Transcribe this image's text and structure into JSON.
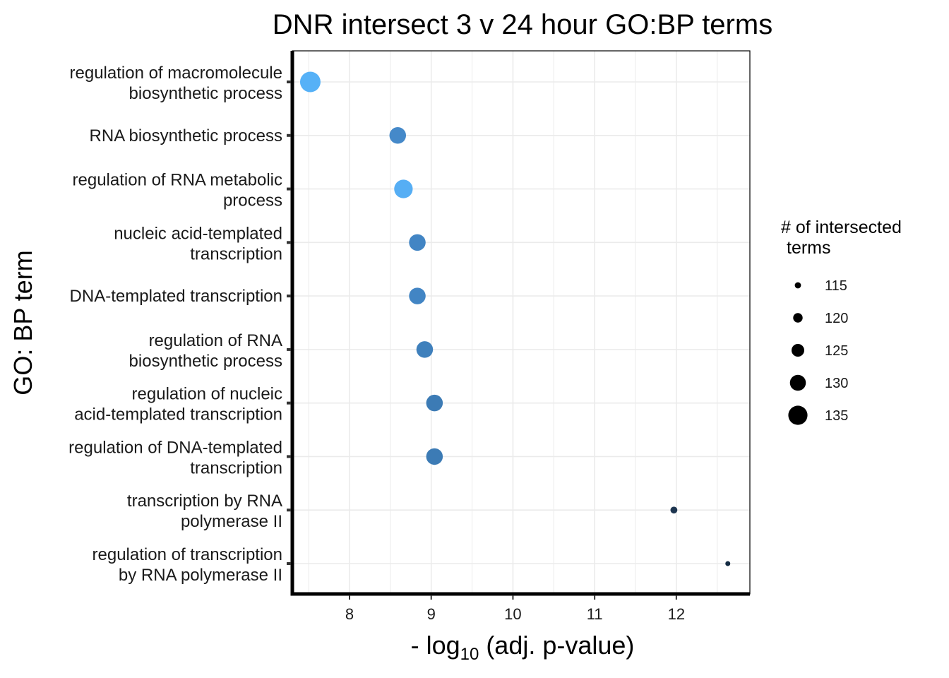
{
  "chart_data": {
    "type": "scatter",
    "title": "DNR intersect 3 v 24 hour GO:BP terms",
    "xlabel": {
      "prefix": "- log",
      "subscript": "10",
      "suffix": " (adj. p-value)"
    },
    "ylabel": "GO: BP term",
    "xlim": [
      7.3,
      12.9
    ],
    "xticks": [
      "8",
      "9",
      "10",
      "11",
      "12"
    ],
    "categories": [
      [
        "regulation of macromolecule",
        "biosynthetic process"
      ],
      [
        "RNA biosynthetic process"
      ],
      [
        "regulation of RNA metabolic",
        "process"
      ],
      [
        "nucleic acid-templated",
        "transcription"
      ],
      [
        "DNA-templated transcription"
      ],
      [
        "regulation of RNA",
        "biosynthetic process"
      ],
      [
        "regulation of nucleic",
        "acid-templated transcription"
      ],
      [
        "regulation of DNA-templated",
        "transcription"
      ],
      [
        "transcription by RNA",
        "polymerase II"
      ],
      [
        "regulation of transcription",
        "by RNA polymerase II"
      ]
    ],
    "points": [
      {
        "x": 7.52,
        "size": 137,
        "color": "#56B1F7"
      },
      {
        "x": 8.59,
        "size": 131,
        "color": "#4589C9"
      },
      {
        "x": 8.66,
        "size": 134,
        "color": "#56AEF4"
      },
      {
        "x": 8.83,
        "size": 131,
        "color": "#4285C4"
      },
      {
        "x": 8.83,
        "size": 131,
        "color": "#4285C4"
      },
      {
        "x": 8.92,
        "size": 131,
        "color": "#3F80BC"
      },
      {
        "x": 9.04,
        "size": 131,
        "color": "#3C7BB5"
      },
      {
        "x": 9.04,
        "size": 131,
        "color": "#3C7BB5"
      },
      {
        "x": 11.97,
        "size": 116,
        "color": "#1D3550"
      },
      {
        "x": 12.63,
        "size": 113,
        "color": "#132B43"
      }
    ],
    "size_legend": {
      "title": [
        "# of intersected",
        "terms"
      ],
      "items": [
        "115",
        "120",
        "125",
        "130",
        "135"
      ],
      "values": [
        115,
        120,
        125,
        130,
        135
      ]
    },
    "grid": true
  }
}
